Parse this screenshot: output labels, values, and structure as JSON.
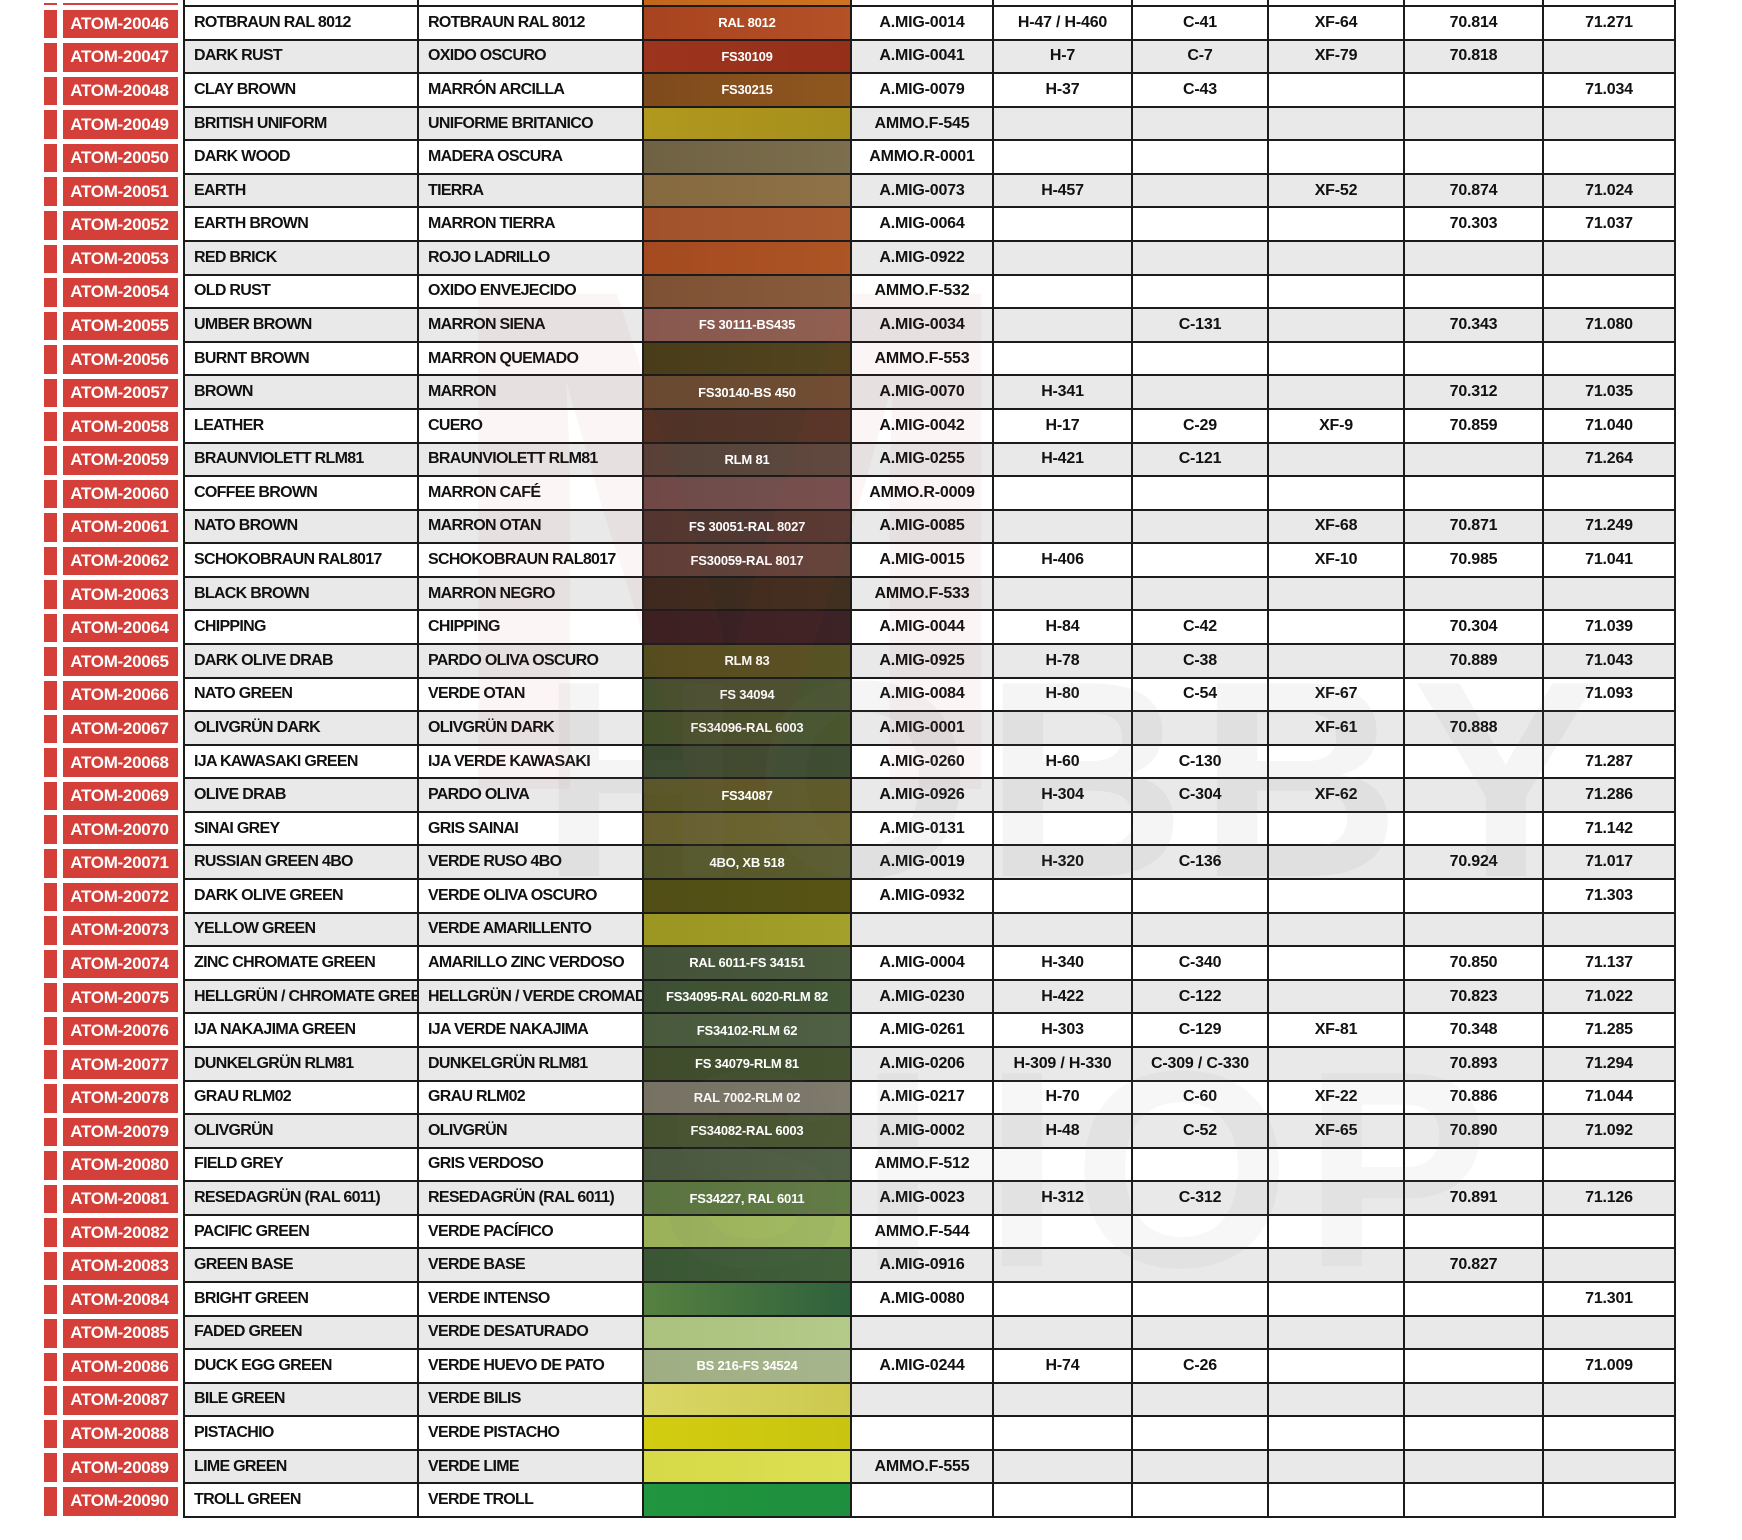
{
  "theme": {
    "red": "#d43f39",
    "border": "#1b1b1b",
    "stripe": "#e9e9e9",
    "page_bg": "#ffffff"
  },
  "watermark": {
    "letters": [
      "M",
      "HOBBY",
      "SHOP"
    ]
  },
  "partial_top_row": {
    "swatch_c1": "#c2661c",
    "swatch_c2": "#cf7322"
  },
  "rows": [
    {
      "code": "ATOM-20046",
      "en": "ROTBRAUN RAL 8012",
      "es": "ROTBRAUN RAL 8012",
      "sw": "RAL 8012",
      "c1": "#a8431f",
      "c2": "#b55127",
      "amig": "A.MIG-0014",
      "h": "H-47 / H-460",
      "c": "C-41",
      "xf": "XF-64",
      "v70": "70.814",
      "v71": "71.271"
    },
    {
      "code": "ATOM-20047",
      "en": "DARK RUST",
      "es": "OXIDO OSCURO",
      "sw": "FS30109",
      "c1": "#9d341d",
      "c2": "#952f1a",
      "amig": "A.MIG-0041",
      "h": "H-7",
      "c": "C-7",
      "xf": "XF-79",
      "v70": "70.818",
      "v71": ""
    },
    {
      "code": "ATOM-20048",
      "en": "CLAY BROWN",
      "es": "MARRÓN ARCILLA",
      "sw": "FS30215",
      "c1": "#7f4a1c",
      "c2": "#8f571f",
      "amig": "A.MIG-0079",
      "h": "H-37",
      "c": "C-43",
      "xf": "",
      "v70": "",
      "v71": "71.034"
    },
    {
      "code": "ATOM-20049",
      "en": "BRITISH UNIFORM",
      "es": "UNIFORME BRITANICO",
      "sw": "",
      "c1": "#b1991e",
      "c2": "#a58e1c",
      "amig": "AMMO.F-545",
      "h": "",
      "c": "",
      "xf": "",
      "v70": "",
      "v71": ""
    },
    {
      "code": "ATOM-20050",
      "en": "DARK WOOD",
      "es": "MADERA OSCURA",
      "sw": "",
      "c1": "#6f6243",
      "c2": "#7c6f4d",
      "amig": "AMMO.R-0001",
      "h": "",
      "c": "",
      "xf": "",
      "v70": "",
      "v71": ""
    },
    {
      "code": "ATOM-20051",
      "en": "EARTH",
      "es": "TIERRA",
      "sw": "",
      "c1": "#85693f",
      "c2": "#8f7247",
      "amig": "A.MIG-0073",
      "h": "H-457",
      "c": "",
      "xf": "XF-52",
      "v70": "70.874",
      "v71": "71.024"
    },
    {
      "code": "ATOM-20052",
      "en": "EARTH BROWN",
      "es": "MARRON TIERRA",
      "sw": "",
      "c1": "#a2522b",
      "c2": "#aa5a2f",
      "amig": "A.MIG-0064",
      "h": "",
      "c": "",
      "xf": "",
      "v70": "70.303",
      "v71": "71.037"
    },
    {
      "code": "ATOM-20053",
      "en": "RED BRICK",
      "es": "ROJO LADRILLO",
      "sw": "",
      "c1": "#a54a20",
      "c2": "#ad5525",
      "amig": "A.MIG-0922",
      "h": "",
      "c": "",
      "xf": "",
      "v70": "",
      "v71": ""
    },
    {
      "code": "ATOM-20054",
      "en": "OLD RUST",
      "es": "OXIDO ENVEJECIDO",
      "sw": "",
      "c1": "#7f5134",
      "c2": "#8a5c3e",
      "amig": "AMMO.F-532",
      "h": "",
      "c": "",
      "xf": "",
      "v70": "",
      "v71": ""
    },
    {
      "code": "ATOM-20055",
      "en": "UMBER BROWN",
      "es": "MARRON SIENA",
      "sw": "FS 30111-BS435",
      "c1": "#88574e",
      "c2": "#906052",
      "amig": "A.MIG-0034",
      "h": "",
      "c": "C-131",
      "xf": "",
      "v70": "70.343",
      "v71": "71.080"
    },
    {
      "code": "ATOM-20056",
      "en": "BURNT BROWN",
      "es": "MARRON QUEMADO",
      "sw": "",
      "c1": "#493c19",
      "c2": "#52451f",
      "amig": "AMMO.F-553",
      "h": "",
      "c": "",
      "xf": "",
      "v70": "",
      "v71": ""
    },
    {
      "code": "ATOM-20057",
      "en": "BROWN",
      "es": "MARRON",
      "sw": "FS30140-BS 450",
      "c1": "#694930",
      "c2": "#6f4e33",
      "amig": "A.MIG-0070",
      "h": "H-341",
      "c": "",
      "xf": "",
      "v70": "70.312",
      "v71": "71.035"
    },
    {
      "code": "ATOM-20058",
      "en": "LEATHER",
      "es": "CUERO",
      "sw": "",
      "c1": "#4f3226",
      "c2": "#553729",
      "amig": "A.MIG-0042",
      "h": "H-17",
      "c": "C-29",
      "xf": "XF-9",
      "v70": "70.859",
      "v71": "71.040"
    },
    {
      "code": "ATOM-20059",
      "en": "BRAUNVIOLETT RLM81",
      "es": "BRAUNVIOLETT RLM81",
      "sw": "RLM 81",
      "c1": "#544138",
      "c2": "#5d4a40",
      "amig": "A.MIG-0255",
      "h": "H-421",
      "c": "C-121",
      "xf": "",
      "v70": "",
      "v71": "71.264"
    },
    {
      "code": "ATOM-20060",
      "en": "COFFEE BROWN",
      "es": "MARRON CAFÉ",
      "sw": "",
      "c1": "#6d4947",
      "c2": "#755150",
      "amig": "AMMO.R-0009",
      "h": "",
      "c": "",
      "xf": "",
      "v70": "",
      "v71": ""
    },
    {
      "code": "ATOM-20061",
      "en": "NATO BROWN",
      "es": "MARRON OTAN",
      "sw": "FS 30051-RAL 8027",
      "c1": "#4f3630",
      "c2": "#553a33",
      "amig": "A.MIG-0085",
      "h": "",
      "c": "",
      "xf": "XF-68",
      "v70": "70.871",
      "v71": "71.249"
    },
    {
      "code": "ATOM-20062",
      "en": "SCHOKOBRAUN RAL8017",
      "es": "SCHOKOBRAUN RAL8017",
      "sw": "FS30059-RAL 8017",
      "c1": "#5c3f38",
      "c2": "#63453d",
      "amig": "A.MIG-0015",
      "h": "H-406",
      "c": "",
      "xf": "XF-10",
      "v70": "70.985",
      "v71": "71.041"
    },
    {
      "code": "ATOM-20063",
      "en": "BLACK BROWN",
      "es": "MARRON NEGRO",
      "sw": "",
      "c1": "#39291f",
      "c2": "#41301f",
      "amig": "AMMO.F-533",
      "h": "",
      "c": "",
      "xf": "",
      "v70": "",
      "v71": ""
    },
    {
      "code": "ATOM-20064",
      "en": "CHIPPING",
      "es": "CHIPPING",
      "sw": "",
      "c1": "#371f22",
      "c2": "#3d2326",
      "amig": "A.MIG-0044",
      "h": "H-84",
      "c": "C-42",
      "xf": "",
      "v70": "70.304",
      "v71": "71.039"
    },
    {
      "code": "ATOM-20065",
      "en": "DARK OLIVE DRAB",
      "es": "PARDO OLIVA OSCURO",
      "sw": "RLM 83",
      "c1": "#514d1d",
      "c2": "#575325",
      "amig": "A.MIG-0925",
      "h": "H-78",
      "c": "C-38",
      "xf": "",
      "v70": "70.889",
      "v71": "71.043"
    },
    {
      "code": "ATOM-20066",
      "en": "NATO GREEN",
      "es": "VERDE OTAN",
      "sw": "FS 34094",
      "c1": "#444f2e",
      "c2": "#4a5532",
      "amig": "A.MIG-0084",
      "h": "H-80",
      "c": "C-54",
      "xf": "XF-67",
      "v70": "",
      "v71": "71.093"
    },
    {
      "code": "ATOM-20067",
      "en": "OLIVGRÜN DARK",
      "es": "OLIVGRÜN DARK",
      "sw": "FS34096-RAL 6003",
      "c1": "#435029",
      "c2": "#49562e",
      "amig": "A.MIG-0001",
      "h": "",
      "c": "",
      "xf": "XF-61",
      "v70": "70.888",
      "v71": ""
    },
    {
      "code": "ATOM-20068",
      "en": "IJA KAWASAKI GREEN",
      "es": "IJA VERDE KAWASAKI",
      "sw": "",
      "c1": "#39482e",
      "c2": "#3f4e33",
      "amig": "A.MIG-0260",
      "h": "H-60",
      "c": "C-130",
      "xf": "",
      "v70": "",
      "v71": "71.287"
    },
    {
      "code": "ATOM-20069",
      "en": "OLIVE DRAB",
      "es": "PARDO OLIVA",
      "sw": "FS34087",
      "c1": "#5a5526",
      "c2": "#605b2a",
      "amig": "A.MIG-0926",
      "h": "H-304",
      "c": "C-304",
      "xf": "XF-62",
      "v70": "",
      "v71": "71.286"
    },
    {
      "code": "ATOM-20070",
      "en": "SINAI GREY",
      "es": "GRIS SAINAI",
      "sw": "",
      "c1": "#655d2b",
      "c2": "#6f6733",
      "amig": "A.MIG-0131",
      "h": "",
      "c": "",
      "xf": "",
      "v70": "",
      "v71": "71.142"
    },
    {
      "code": "ATOM-20071",
      "en": "RUSSIAN GREEN 4BO",
      "es": "VERDE RUSO 4BO",
      "sw": "4BO, XB 518",
      "c1": "#54562a",
      "c2": "#5b5d2e",
      "amig": "A.MIG-0019",
      "h": "H-320",
      "c": "C-136",
      "xf": "",
      "v70": "70.924",
      "v71": "71.017"
    },
    {
      "code": "ATOM-20072",
      "en": "DARK OLIVE GREEN",
      "es": "VERDE OLIVA OSCURO",
      "sw": "",
      "c1": "#514e16",
      "c2": "#575414",
      "amig": "A.MIG-0932",
      "h": "",
      "c": "",
      "xf": "",
      "v70": "",
      "v71": "71.303"
    },
    {
      "code": "ATOM-20073",
      "en": "YELLOW GREEN",
      "es": "VERDE AMARILLENTO",
      "sw": "",
      "c1": "#9b9522",
      "c2": "#a3a02c",
      "amig": "",
      "h": "",
      "c": "",
      "xf": "",
      "v70": "",
      "v71": ""
    },
    {
      "code": "ATOM-20074",
      "en": "ZINC CHROMATE GREEN",
      "es": "AMARILLO ZINC VERDOSO",
      "sw": "RAL 6011-FS 34151",
      "c1": "#445238",
      "c2": "#4a5a3d",
      "amig": "A.MIG-0004",
      "h": "H-340",
      "c": "C-340",
      "xf": "",
      "v70": "70.850",
      "v71": "71.137"
    },
    {
      "code": "ATOM-20075",
      "en": "HELLGRÜN / CHROMATE GREEN",
      "es": "HELLGRÜN / VERDE CROMADO",
      "sw": "FS34095-RAL 6020-RLM 82",
      "c1": "#3d5033",
      "c2": "#435837",
      "amig": "A.MIG-0230",
      "h": "H-422",
      "c": "C-122",
      "xf": "",
      "v70": "70.823",
      "v71": "71.022"
    },
    {
      "code": "ATOM-20076",
      "en": "IJA NAKAJIMA GREEN",
      "es": "IJA VERDE NAKAJIMA",
      "sw": "FS34102-RLM 62",
      "c1": "#49593c",
      "c2": "#506044",
      "amig": "A.MIG-0261",
      "h": "H-303",
      "c": "C-129",
      "xf": "XF-81",
      "v70": "70.348",
      "v71": "71.285"
    },
    {
      "code": "ATOM-20077",
      "en": "DUNKELGRÜN RLM81",
      "es": "DUNKELGRÜN RLM81",
      "sw": "FS 34079-RLM 81",
      "c1": "#3f4c2c",
      "c2": "#445230",
      "amig": "A.MIG-0206",
      "h": "H-309 / H-330",
      "c": "C-309 / C-330",
      "xf": "",
      "v70": "70.893",
      "v71": "71.294"
    },
    {
      "code": "ATOM-20078",
      "en": "GRAU RLM02",
      "es": "GRAU RLM02",
      "sw": "RAL 7002-RLM 02",
      "c1": "#767163",
      "c2": "#7e7a6c",
      "amig": "A.MIG-0217",
      "h": "H-70",
      "c": "C-60",
      "xf": "XF-22",
      "v70": "70.886",
      "v71": "71.044"
    },
    {
      "code": "ATOM-20079",
      "en": "OLIVGRÜN",
      "es": "OLIVGRÜN",
      "sw": "FS34082-RAL 6003",
      "c1": "#46512f",
      "c2": "#4c5834",
      "amig": "A.MIG-0002",
      "h": "H-48",
      "c": "C-52",
      "xf": "XF-65",
      "v70": "70.890",
      "v71": "71.092"
    },
    {
      "code": "ATOM-20080",
      "en": "FIELD GREY",
      "es": "GRIS VERDOSO",
      "sw": "",
      "c1": "#49573f",
      "c2": "#506046",
      "amig": "AMMO.F-512",
      "h": "",
      "c": "",
      "xf": "",
      "v70": "",
      "v71": ""
    },
    {
      "code": "ATOM-20081",
      "en": "RESEDAGRÜN (RAL 6011)",
      "es": "RESEDAGRÜN (RAL 6011)",
      "sw": "FS34227, RAL 6011",
      "c1": "#5a7340",
      "c2": "#627c45",
      "amig": "A.MIG-0023",
      "h": "H-312",
      "c": "C-312",
      "xf": "",
      "v70": "70.891",
      "v71": "71.126"
    },
    {
      "code": "ATOM-20082",
      "en": "PACIFIC GREEN",
      "es": "VERDE PACÍFICO",
      "sw": "",
      "c1": "#9ab059",
      "c2": "#a2bb63",
      "amig": "AMMO.F-544",
      "h": "",
      "c": "",
      "xf": "",
      "v70": "",
      "v71": ""
    },
    {
      "code": "ATOM-20083",
      "en": "GREEN BASE",
      "es": "VERDE BASE",
      "sw": "",
      "c1": "#3a5634",
      "c2": "#40603a",
      "amig": "A.MIG-0916",
      "h": "",
      "c": "",
      "xf": "",
      "v70": "70.827",
      "v71": ""
    },
    {
      "code": "ATOM-20084",
      "en": "BRIGHT GREEN",
      "es": "VERDE INTENSO",
      "sw": "",
      "c1": "#568140",
      "c2": "#2f613c",
      "amig": "A.MIG-0080",
      "h": "",
      "c": "",
      "xf": "",
      "v70": "",
      "v71": "71.301"
    },
    {
      "code": "ATOM-20085",
      "en": "FADED GREEN",
      "es": "VERDE DESATURADO",
      "sw": "",
      "c1": "#abc17e",
      "c2": "#b3ca88",
      "amig": "",
      "h": "",
      "c": "",
      "xf": "",
      "v70": "",
      "v71": ""
    },
    {
      "code": "ATOM-20086",
      "en": "DUCK EGG GREEN",
      "es": "VERDE HUEVO DE PATO",
      "sw": "BS 216-FS 34524",
      "c1": "#9fad83",
      "c2": "#a7b58c",
      "amig": "A.MIG-0244",
      "h": "H-74",
      "c": "C-26",
      "xf": "",
      "v70": "",
      "v71": "71.009"
    },
    {
      "code": "ATOM-20087",
      "en": "BILE GREEN",
      "es": "VERDE BILIS",
      "sw": "",
      "c1": "#d9d666",
      "c2": "#cdc94e",
      "amig": "",
      "h": "",
      "c": "",
      "xf": "",
      "v70": "",
      "v71": ""
    },
    {
      "code": "ATOM-20088",
      "en": "PISTACHIO",
      "es": "VERDE PISTACHO",
      "sw": "",
      "c1": "#d3cd11",
      "c2": "#c8c410",
      "amig": "",
      "h": "",
      "c": "",
      "xf": "",
      "v70": "",
      "v71": ""
    },
    {
      "code": "ATOM-20089",
      "en": "LIME GREEN",
      "es": "VERDE LIME",
      "sw": "",
      "c1": "#d6da47",
      "c2": "#dbdf52",
      "amig": "AMMO.F-555",
      "h": "",
      "c": "",
      "xf": "",
      "v70": "",
      "v71": ""
    },
    {
      "code": "ATOM-20090",
      "en": "TROLL GREEN",
      "es": "VERDE TROLL",
      "sw": "",
      "c1": "#21953f",
      "c2": "#1e8f3e",
      "amig": "",
      "h": "",
      "c": "",
      "xf": "",
      "v70": "",
      "v71": ""
    }
  ]
}
